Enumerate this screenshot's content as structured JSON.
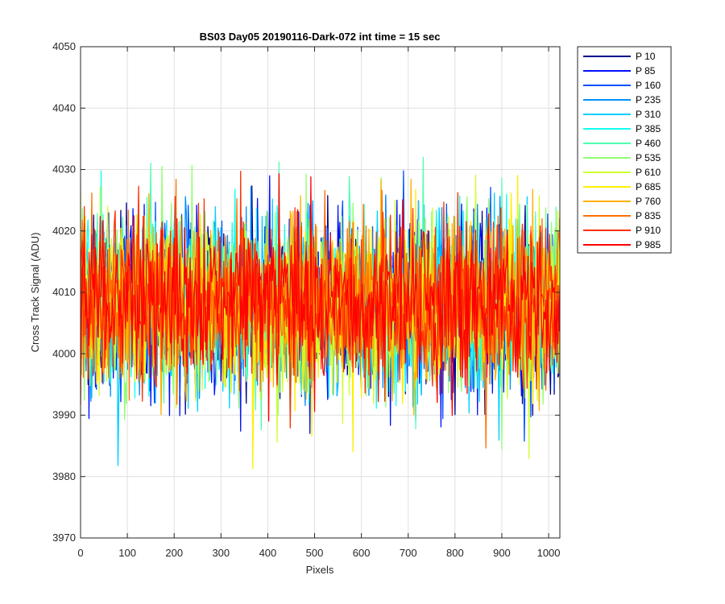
{
  "chart_data": {
    "type": "line",
    "title": "BS03 Day05 20190116-Dark-072 int time = 15 sec",
    "xlabel": "Pixels",
    "ylabel": "Cross Track Signal (ADU)",
    "xlim": [
      0,
      1024
    ],
    "ylim": [
      3970,
      4050
    ],
    "xticks": [
      0,
      100,
      200,
      300,
      400,
      500,
      600,
      700,
      800,
      900,
      1000
    ],
    "yticks": [
      3970,
      3980,
      3990,
      4000,
      4010,
      4020,
      4030,
      4040,
      4050
    ],
    "grid": true,
    "legend_position": "outside-top-right",
    "noise_model": {
      "mean": 4008,
      "sigma": 7,
      "min": 3976,
      "max": 4048
    },
    "series": [
      {
        "name": "P 10",
        "color": "#00008f"
      },
      {
        "name": "P 85",
        "color": "#0010ff"
      },
      {
        "name": "P 160",
        "color": "#0050ff"
      },
      {
        "name": "P 235",
        "color": "#0090ff"
      },
      {
        "name": "P 310",
        "color": "#00cfff"
      },
      {
        "name": "P 385",
        "color": "#10ffef"
      },
      {
        "name": "P 460",
        "color": "#50ffaf"
      },
      {
        "name": "P 535",
        "color": "#8fff70"
      },
      {
        "name": "P 610",
        "color": "#cfff30"
      },
      {
        "name": "P 685",
        "color": "#ffef00"
      },
      {
        "name": "P 760",
        "color": "#ffaf00"
      },
      {
        "name": "P 835",
        "color": "#ff7000"
      },
      {
        "name": "P 910",
        "color": "#ff3000"
      },
      {
        "name": "P 985",
        "color": "#ff0000"
      }
    ]
  }
}
